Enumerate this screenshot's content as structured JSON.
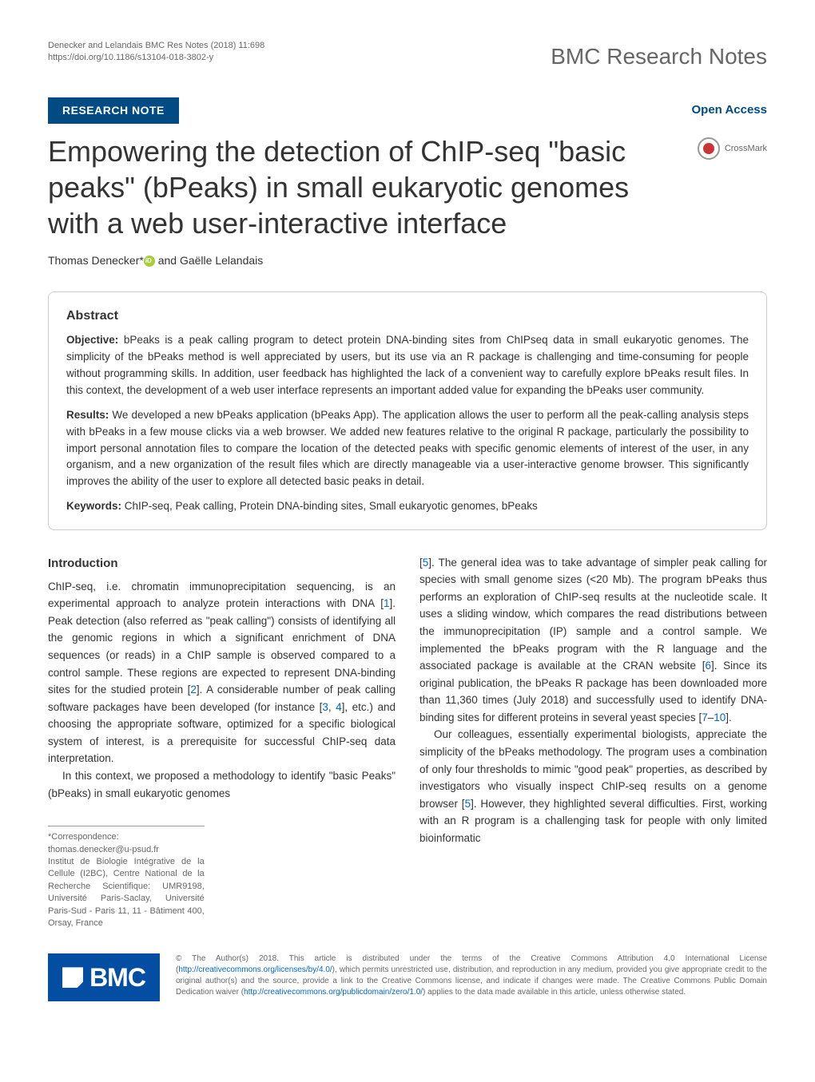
{
  "header": {
    "citation": "Denecker and Lelandais BMC Res Notes  (2018) 11:698",
    "doi": "https://doi.org/10.1186/s13104-018-3802-y",
    "journal": "BMC Research Notes"
  },
  "article": {
    "category": "RESEARCH NOTE",
    "open_access": "Open Access",
    "crossmark": "CrossMark",
    "title": "Empowering the detection of ChIP-seq \"basic peaks\" (bPeaks) in small eukaryotic genomes with a web user-interactive interface",
    "authors": "Thomas Denecker*",
    "authors_suffix": " and Gaëlle Lelandais"
  },
  "abstract": {
    "heading": "Abstract",
    "objective_label": "Objective:",
    "objective_text": " bPeaks is a peak calling program to detect protein DNA-binding sites from ChIPseq data in small eukaryotic genomes. The simplicity of the bPeaks method is well appreciated by users, but its use via an R package is challenging and time-consuming for people without programming skills. In addition, user feedback has highlighted the lack of a convenient way to carefully explore bPeaks result files. In this context, the development of a web user interface represents an important added value for expanding the bPeaks user community.",
    "results_label": "Results:",
    "results_text": " We developed a new bPeaks application (bPeaks App). The application allows the user to perform all the peak-calling analysis steps with bPeaks in a few mouse clicks via a web browser. We added new features relative to the original R package, particularly the possibility to import personal annotation files to compare the location of the detected peaks with specific genomic elements of interest of the user, in any organism, and a new organization of the result files which are directly manageable via a user-interactive genome browser. This significantly improves the ability of the user to explore all detected basic peaks in detail.",
    "keywords_label": "Keywords:",
    "keywords_text": " ChIP-seq, Peak calling, Protein DNA-binding sites, Small eukaryotic genomes, bPeaks"
  },
  "body": {
    "intro_heading": "Introduction",
    "col1_p1": "ChIP-seq, i.e. chromatin immunoprecipitation sequencing, is an experimental approach to analyze protein interactions with DNA [",
    "col1_p1_ref1": "1",
    "col1_p1_cont": "]. Peak detection (also referred as \"peak calling\") consists of identifying all the genomic regions in which a significant enrichment of DNA sequences (or reads) in a ChIP sample is observed compared to a control sample. These regions are expected to represent DNA-binding sites for the studied protein [",
    "col1_p1_ref2": "2",
    "col1_p1_cont2": "]. A considerable number of peak calling software packages have been developed (for instance [",
    "col1_p1_ref3": "3",
    "col1_p1_comma": ", ",
    "col1_p1_ref4": "4",
    "col1_p1_cont3": "], etc.) and choosing the appropriate software, optimized for a specific biological system of interest, is a prerequisite for successful ChIP-seq data interpretation.",
    "col1_p2": "In this context, we proposed a methodology to identify \"basic Peaks\" (bPeaks) in small eukaryotic genomes",
    "col2_p1_start": "[",
    "col2_p1_ref5": "5",
    "col2_p1_cont": "]. The general idea was to take advantage of simpler peak calling for species with small genome sizes (<20 Mb). The program bPeaks thus performs an exploration of ChIP-seq results at the nucleotide scale. It uses a sliding window, which compares the read distributions between the immunoprecipitation (IP) sample and a control sample. We implemented the bPeaks program with the R language and the associated package is available at the CRAN website [",
    "col2_p1_ref6": "6",
    "col2_p1_cont2": "]. Since its original publication, the bPeaks R package has been downloaded more than 11,360 times (July 2018) and successfully used to identify DNA-binding sites for different proteins in several yeast species [",
    "col2_p1_ref7": "7",
    "col2_p1_dash": "–",
    "col2_p1_ref10": "10",
    "col2_p1_cont3": "].",
    "col2_p2": "Our colleagues, essentially experimental biologists, appreciate the simplicity of the bPeaks methodology. The program uses a combination of only four thresholds to mimic \"good peak\" properties, as described by investigators who visually inspect ChIP-seq results on a genome browser [",
    "col2_p2_ref5": "5",
    "col2_p2_cont": "]. However, they highlighted several difficulties. First, working with an R program is a challenging task for people with only limited bioinformatic"
  },
  "correspondence": {
    "email_line": "*Correspondence:  thomas.denecker@u-psud.fr",
    "affiliation": "Institut de Biologie Intégrative de la Cellule (I2BC), Centre National de la Recherche Scientifique: UMR9198, Université Paris-Saclay, Université Paris-Sud - Paris 11, 11 - Bâtiment 400, Orsay, France"
  },
  "license": {
    "bmc_label": "BMC",
    "text_start": "© The Author(s) 2018. This article is distributed under the terms of the Creative Commons Attribution 4.0 International License (",
    "url1": "http://creativecommons.org/licenses/by/4.0/",
    "text_mid": "), which permits unrestricted use, distribution, and reproduction in any medium, provided you give appropriate credit to the original author(s) and the source, provide a link to the Creative Commons license, and indicate if changes were made. The Creative Commons Public Domain Dedication waiver (",
    "url2": "http://creativecommons.org/publicdomain/zero/1.0/",
    "text_end": ") applies to the data made available in this article, unless otherwise stated."
  },
  "colors": {
    "badge_bg": "#004b83",
    "link": "#0066cc",
    "bmc_bg": "#034ea2"
  }
}
